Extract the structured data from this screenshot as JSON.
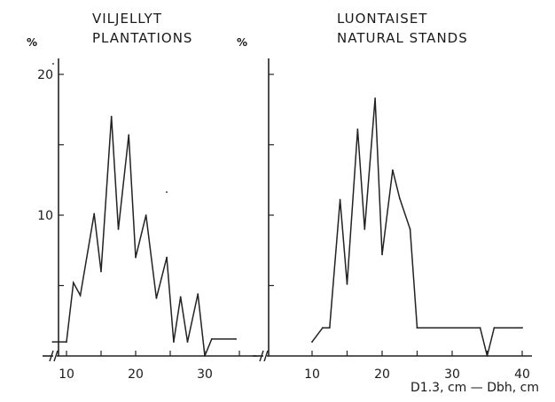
{
  "chart_data": [
    {
      "type": "line",
      "title": "VILJELLYT",
      "subtitle": "PLANTATIONS",
      "ylabel": "%",
      "xlabel": "",
      "xlim": [
        6,
        36
      ],
      "ylim": [
        0,
        20
      ],
      "xticks": [
        10,
        20,
        30
      ],
      "yticks": [
        10,
        20
      ],
      "grid": false,
      "series": [
        {
          "x": [
            8,
            10,
            11,
            12,
            14,
            15,
            16.5,
            17.5,
            19,
            20,
            21.5,
            23,
            24.5,
            25.5,
            26.5,
            27.5,
            29,
            30,
            31,
            34.5
          ],
          "values": [
            1,
            1,
            5.2,
            4.3,
            10.1,
            6,
            17,
            9,
            15.7,
            7,
            10,
            4.1,
            7,
            1,
            4.2,
            1,
            4.4,
            0,
            1.2,
            1.2
          ]
        }
      ]
    },
    {
      "type": "line",
      "title": "LUONTAISET",
      "subtitle": "NATURAL STANDS",
      "ylabel": "%",
      "xlabel": "D1.3, cm — Dbh, cm",
      "xlim": [
        6,
        42
      ],
      "ylim": [
        0,
        20
      ],
      "xticks": [
        10,
        20,
        30,
        40
      ],
      "yticks": [
        10,
        20
      ],
      "grid": false,
      "series": [
        {
          "x": [
            10,
            11.5,
            12.5,
            14,
            15,
            16.5,
            17.5,
            19,
            20,
            21.5,
            22.5,
            24,
            25,
            34,
            35,
            36,
            40
          ],
          "values": [
            1,
            2,
            2,
            11.1,
            5.1,
            16.1,
            9,
            18.3,
            7.2,
            13.2,
            11.2,
            9,
            2,
            2,
            0,
            2,
            2
          ]
        }
      ]
    }
  ]
}
